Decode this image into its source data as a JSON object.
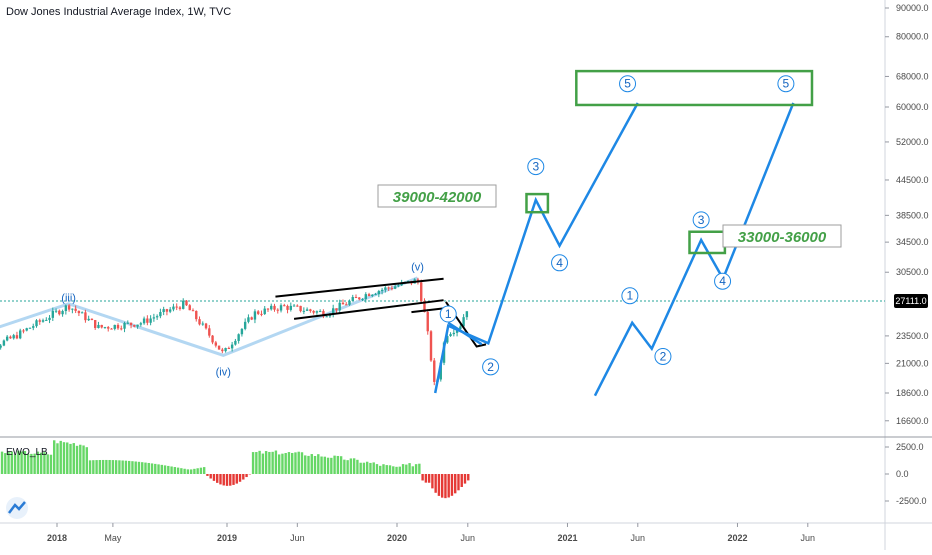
{
  "header": {
    "title": "Dow Jones Industrial Average Index, 1W, TVC"
  },
  "oscillator": {
    "title": "EWO_LB"
  },
  "colors": {
    "up": "#26a69a",
    "down": "#ef5350",
    "wave_blue": "#1e88e5",
    "wave_light": "#b3d7f2",
    "target_green": "#43a047",
    "osc_up": "#66d766",
    "osc_down": "#e53935",
    "last_price_line": "#26a69a"
  },
  "chart_data": {
    "type": "line",
    "title": "Dow Jones Industrial Average Index, 1W, TVC",
    "log_scale": true,
    "ylim": [
      15000,
      97000
    ],
    "last_price": 27111.0,
    "last_price_label": "27111.0",
    "y_ticks": [
      "90000.0",
      "80000.0",
      "68000.0",
      "60000.0",
      "52000.0",
      "44500.0",
      "38500.0",
      "34500.0",
      "30500.0",
      "23500.0",
      "21000.0",
      "18600.0",
      "16600.0"
    ],
    "y_tick_values": [
      90000,
      80000,
      68000,
      60000,
      52000,
      44500,
      38500,
      34500,
      30500,
      23500,
      21000,
      18600,
      16600
    ],
    "x_ticks": [
      "2018",
      "May",
      "2019",
      "Jun",
      "2020",
      "Jun",
      "2021",
      "Jun",
      "2022",
      "Jun"
    ],
    "x_tick_dates": [
      "2018-01-01",
      "2018-05-01",
      "2019-01-01",
      "2019-06-01",
      "2020-01-01",
      "2020-06-01",
      "2021-01-01",
      "2021-06-01",
      "2022-01-01",
      "2022-06-01"
    ],
    "price_series": {
      "name": "",
      "x": [
        "2017-07-01",
        "2017-10-01",
        "2018-01-26",
        "2018-04-01",
        "2018-07-01",
        "2018-10-01",
        "2018-12-24",
        "2019-03-01",
        "2019-05-01",
        "2019-08-01",
        "2019-11-01",
        "2020-02-14",
        "2020-03-01",
        "2020-03-23",
        "2020-04-15",
        "2020-05-15",
        "2020-06-05"
      ],
      "y": [
        21500,
        23400,
        26600,
        24300,
        24800,
        26800,
        21800,
        25800,
        26500,
        25800,
        28000,
        29500,
        25500,
        18600,
        23700,
        24500,
        27000
      ]
    },
    "wave_labels": [
      {
        "label": "(iii)",
        "date": "2018-01-26",
        "value": 27500
      },
      {
        "label": "(iv)",
        "date": "2018-12-24",
        "value": 20300
      },
      {
        "label": "(v)",
        "date": "2020-02-14",
        "value": 31200
      },
      {
        "label": "1",
        "date": "2020-04-20",
        "value": 25700
      },
      {
        "label": "2",
        "date": "2020-07-20",
        "value": 20700
      },
      {
        "label": "3",
        "date": "2020-10-25",
        "value": 47000
      },
      {
        "label": "4",
        "date": "2020-12-15",
        "value": 31700
      },
      {
        "label": "5",
        "date": "2021-05-10",
        "value": 66000
      },
      {
        "label": "1",
        "date": "2021-05-15",
        "value": 27700
      },
      {
        "label": "2",
        "date": "2021-07-25",
        "value": 21600
      },
      {
        "label": "3",
        "date": "2021-10-15",
        "value": 37800
      },
      {
        "label": "4",
        "date": "2021-11-30",
        "value": 29400
      },
      {
        "label": "5",
        "date": "2022-04-15",
        "value": 66000
      }
    ],
    "scenario_a_path": {
      "x": [
        "2020-03-23",
        "2020-04-20",
        "2020-07-15",
        "2020-10-25",
        "2020-12-15",
        "2021-06-01"
      ],
      "y": [
        18600,
        24500,
        22800,
        41000,
        34000,
        61000
      ]
    },
    "scenario_b_path": {
      "x": [
        "2021-03-01",
        "2021-05-20",
        "2021-07-01",
        "2021-10-15",
        "2021-12-01",
        "2022-05-01"
      ],
      "y": [
        18400,
        24800,
        22300,
        34800,
        29700,
        61000
      ]
    },
    "targets": [
      {
        "label": "39000-42000",
        "low": 39000,
        "high": 42000
      },
      {
        "label": "33000-36000",
        "low": 33000,
        "high": 36000
      }
    ],
    "ewo_histogram": {
      "ylim": [
        -3800,
        3000
      ],
      "y_ticks": [
        "2500.0",
        "0.0",
        "-2500.0"
      ],
      "y_tick_values": [
        2500,
        0,
        -2500
      ]
    }
  }
}
